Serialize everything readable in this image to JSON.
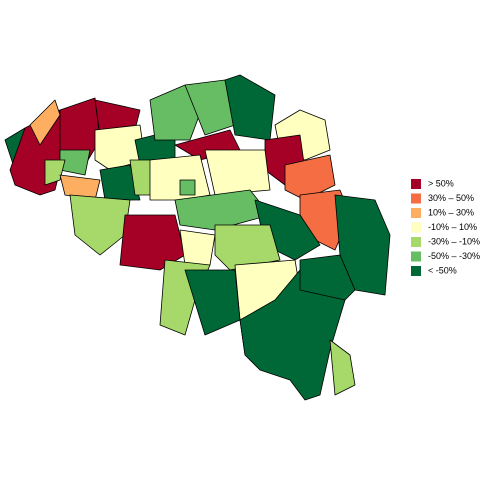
{
  "legend": {
    "items": [
      {
        "label": ">  50%",
        "color": "#a50026"
      },
      {
        "label": "30%  –  50%",
        "color": "#f46d43"
      },
      {
        "label": "10%  –  30%",
        "color": "#fdae61"
      },
      {
        "label": "-10%  –  10%",
        "color": "#ffffbf"
      },
      {
        "label": "-30%  –  -10%",
        "color": "#a6d96a"
      },
      {
        "label": "-50%  –  -30%",
        "color": "#66bd63"
      },
      {
        "label": "< -50%",
        "color": "#006837"
      }
    ]
  }
}
